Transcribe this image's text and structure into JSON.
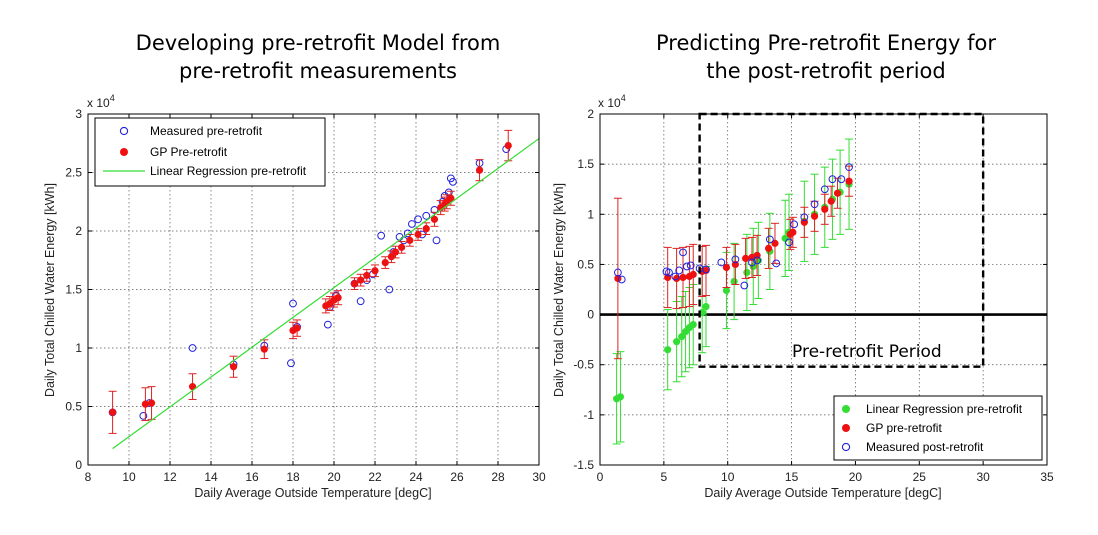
{
  "colors": {
    "measured": "#2222dd",
    "gp": "#ee1111",
    "linreg": "#33dd33",
    "errbar": "#dd2222",
    "grid": "#555555"
  },
  "chart_data": [
    {
      "type": "scatter",
      "title": "Developing pre-retrofit Model from pre-retrofit measurements",
      "title_lines": [
        "Developing pre-retrofit Model from",
        "pre-retrofit measurements"
      ],
      "xlabel": "Daily Average Outside Temperature [degC]",
      "ylabel": "Daily Total Chilled Water Energy [kWh]",
      "y_multiplier": "x 10",
      "y_multiplier_exp": "4",
      "xlim": [
        8,
        30
      ],
      "ylim": [
        0,
        3
      ],
      "x_ticks": [
        "8",
        "10",
        "12",
        "14",
        "16",
        "18",
        "20",
        "22",
        "24",
        "26",
        "28",
        "30"
      ],
      "y_ticks": [
        "0",
        "0.5",
        "1",
        "1.5",
        "2",
        "2.5",
        "3"
      ],
      "grid": true,
      "legend_position": "top-left",
      "legend": [
        "Measured pre-retrofit",
        "GP Pre-retrofit",
        "Linear Regression pre-retrofit"
      ],
      "series": [
        {
          "name": "Measured pre-retrofit",
          "style": "open-circle",
          "points": [
            [
              9.2,
              0.45
            ],
            [
              10.7,
              0.42
            ],
            [
              11.0,
              0.53
            ],
            [
              13.1,
              1.0
            ],
            [
              15.1,
              0.86
            ],
            [
              16.6,
              1.02
            ],
            [
              17.9,
              0.87
            ],
            [
              18.0,
              1.38
            ],
            [
              18.2,
              1.18
            ],
            [
              19.7,
              1.2
            ],
            [
              19.8,
              1.35
            ],
            [
              20.1,
              1.45
            ],
            [
              21.0,
              1.55
            ],
            [
              21.3,
              1.4
            ],
            [
              21.6,
              1.58
            ],
            [
              21.9,
              1.63
            ],
            [
              22.3,
              1.96
            ],
            [
              22.7,
              1.5
            ],
            [
              22.9,
              1.82
            ],
            [
              23.2,
              1.95
            ],
            [
              23.4,
              1.92
            ],
            [
              23.6,
              1.98
            ],
            [
              23.8,
              2.06
            ],
            [
              24.1,
              2.1
            ],
            [
              24.3,
              1.97
            ],
            [
              24.5,
              2.13
            ],
            [
              24.9,
              2.18
            ],
            [
              25.0,
              1.92
            ],
            [
              25.3,
              2.25
            ],
            [
              25.4,
              2.3
            ],
            [
              25.6,
              2.33
            ],
            [
              25.7,
              2.45
            ],
            [
              25.8,
              2.42
            ],
            [
              27.1,
              2.58
            ],
            [
              28.4,
              2.7
            ]
          ]
        },
        {
          "name": "GP Pre-retrofit",
          "style": "filled-dot",
          "points": [
            [
              9.2,
              0.45,
              0.18
            ],
            [
              10.8,
              0.52,
              0.14
            ],
            [
              11.1,
              0.53,
              0.14
            ],
            [
              13.1,
              0.67,
              0.11
            ],
            [
              15.1,
              0.84,
              0.09
            ],
            [
              16.6,
              0.99,
              0.08
            ],
            [
              18.0,
              1.15,
              0.07
            ],
            [
              18.2,
              1.17,
              0.07
            ],
            [
              19.6,
              1.36,
              0.06
            ],
            [
              19.8,
              1.38,
              0.06
            ],
            [
              20.0,
              1.41,
              0.06
            ],
            [
              20.2,
              1.43,
              0.06
            ],
            [
              21.0,
              1.55,
              0.05
            ],
            [
              21.3,
              1.58,
              0.05
            ],
            [
              21.6,
              1.62,
              0.05
            ],
            [
              22.0,
              1.66,
              0.05
            ],
            [
              22.5,
              1.73,
              0.05
            ],
            [
              22.8,
              1.78,
              0.05
            ],
            [
              23.0,
              1.82,
              0.05
            ],
            [
              23.3,
              1.86,
              0.05
            ],
            [
              23.7,
              1.92,
              0.05
            ],
            [
              24.1,
              1.97,
              0.05
            ],
            [
              24.5,
              2.02,
              0.05
            ],
            [
              24.9,
              2.1,
              0.06
            ],
            [
              25.2,
              2.2,
              0.06
            ],
            [
              25.4,
              2.23,
              0.06
            ],
            [
              25.5,
              2.25,
              0.06
            ],
            [
              25.7,
              2.28,
              0.06
            ],
            [
              27.1,
              2.52,
              0.09
            ],
            [
              28.5,
              2.73,
              0.13
            ]
          ]
        },
        {
          "name": "Linear Regression pre-retrofit",
          "style": "line",
          "points": [
            [
              9.2,
              0.14
            ],
            [
              30.0,
              2.79
            ]
          ]
        }
      ]
    },
    {
      "type": "scatter",
      "title": "Predicting Pre-retrofit Energy for the post-retrofit period",
      "title_lines": [
        "Predicting Pre-retrofit Energy for",
        "the post-retrofit period"
      ],
      "xlabel": "Daily Average Outside Temperature [degC]",
      "ylabel": "Daily Total Chilled Water Energy [kWh]",
      "y_multiplier": "x 10",
      "y_multiplier_exp": "4",
      "xlim": [
        0,
        35
      ],
      "ylim": [
        -1.5,
        2
      ],
      "x_ticks": [
        "0",
        "5",
        "10",
        "15",
        "20",
        "25",
        "30",
        "35"
      ],
      "y_ticks": [
        "-1.5",
        "-1",
        "-0.5",
        "0",
        "0.5",
        "1",
        "1.5",
        "2"
      ],
      "grid": true,
      "legend_position": "bottom-right",
      "legend": [
        "Linear Regression pre-retrofit",
        "GP pre-retrofit",
        "Measured post-retrofit"
      ],
      "annotation": {
        "text": "Pre-retrofit Period",
        "x_range": [
          7.8,
          30
        ],
        "y_range": [
          -0.52,
          2
        ]
      },
      "series": [
        {
          "name": "Linear Regression pre-retrofit",
          "style": "filled-dot",
          "points": [
            [
              1.3,
              -0.84,
              0.45
            ],
            [
              1.6,
              -0.82,
              0.45
            ],
            [
              5.3,
              -0.35,
              0.4
            ],
            [
              6.0,
              -0.27,
              0.4
            ],
            [
              6.4,
              -0.22,
              0.4
            ],
            [
              6.7,
              -0.17,
              0.4
            ],
            [
              7.0,
              -0.13,
              0.4
            ],
            [
              7.3,
              -0.1,
              0.4
            ],
            [
              8.0,
              0.02,
              0.4
            ],
            [
              8.3,
              0.08,
              0.4
            ],
            [
              9.9,
              0.24,
              0.38
            ],
            [
              10.5,
              0.33,
              0.38
            ],
            [
              11.5,
              0.42,
              0.38
            ],
            [
              12.0,
              0.48,
              0.38
            ],
            [
              12.4,
              0.54,
              0.38
            ],
            [
              13.3,
              0.63,
              0.38
            ],
            [
              14.5,
              0.76,
              0.38
            ],
            [
              14.8,
              0.82,
              0.38
            ],
            [
              16.0,
              0.93,
              0.4
            ],
            [
              16.8,
              1.0,
              0.4
            ],
            [
              17.6,
              1.07,
              0.4
            ],
            [
              18.2,
              1.15,
              0.4
            ],
            [
              18.8,
              1.22,
              0.42
            ],
            [
              19.5,
              1.3,
              0.45
            ]
          ]
        },
        {
          "name": "GP pre-retrofit",
          "style": "filled-dot",
          "points": [
            [
              1.4,
              0.36,
              0.8
            ],
            [
              5.3,
              0.37,
              0.3
            ],
            [
              6.0,
              0.36,
              0.3
            ],
            [
              6.5,
              0.37,
              0.3
            ],
            [
              7.0,
              0.38,
              0.3
            ],
            [
              7.3,
              0.4,
              0.3
            ],
            [
              8.0,
              0.43,
              0.25
            ],
            [
              8.3,
              0.44,
              0.25
            ],
            [
              9.9,
              0.47,
              0.2
            ],
            [
              10.6,
              0.5,
              0.2
            ],
            [
              11.4,
              0.56,
              0.2
            ],
            [
              11.9,
              0.57,
              0.2
            ],
            [
              12.3,
              0.59,
              0.2
            ],
            [
              13.2,
              0.66,
              0.2
            ],
            [
              13.7,
              0.71,
              0.2
            ],
            [
              14.9,
              0.8,
              0.15
            ],
            [
              15.1,
              0.82,
              0.15
            ],
            [
              16.0,
              0.92,
              0.15
            ],
            [
              16.8,
              0.98,
              0.15
            ],
            [
              17.6,
              1.05,
              0.15
            ],
            [
              18.1,
              1.13,
              0.15
            ],
            [
              18.6,
              1.21,
              0.15
            ],
            [
              19.5,
              1.33,
              0.15
            ]
          ]
        },
        {
          "name": "Measured post-retrofit",
          "style": "open-circle",
          "points": [
            [
              1.4,
              0.42
            ],
            [
              1.7,
              0.35
            ],
            [
              5.2,
              0.43
            ],
            [
              5.4,
              0.42
            ],
            [
              5.9,
              0.38
            ],
            [
              6.2,
              0.44
            ],
            [
              6.5,
              0.62
            ],
            [
              6.8,
              0.48
            ],
            [
              7.1,
              0.49
            ],
            [
              7.8,
              0.46
            ],
            [
              8.3,
              0.45
            ],
            [
              9.5,
              0.52
            ],
            [
              10.6,
              0.55
            ],
            [
              11.3,
              0.29
            ],
            [
              11.9,
              0.52
            ],
            [
              12.3,
              0.54
            ],
            [
              13.3,
              0.75
            ],
            [
              13.8,
              0.51
            ],
            [
              14.8,
              0.72
            ],
            [
              15.2,
              0.9
            ],
            [
              16.0,
              0.97
            ],
            [
              16.8,
              1.1
            ],
            [
              17.6,
              1.25
            ],
            [
              18.2,
              1.35
            ],
            [
              18.9,
              1.35
            ],
            [
              19.5,
              1.47
            ]
          ]
        }
      ]
    }
  ]
}
